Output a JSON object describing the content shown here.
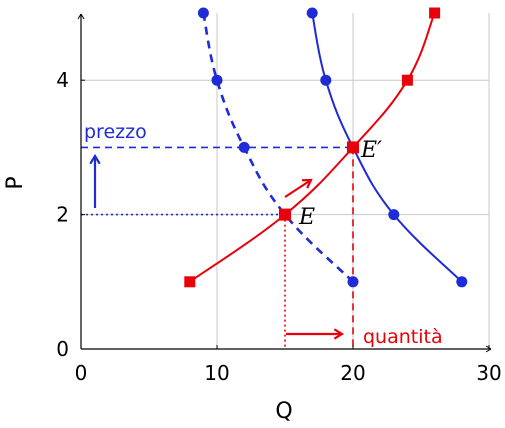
{
  "chart_data": {
    "type": "line",
    "xlabel": "Q",
    "ylabel": "P",
    "xlim": [
      0,
      30
    ],
    "ylim": [
      0,
      5
    ],
    "xticks": [
      "0",
      "10",
      "20",
      "30"
    ],
    "yticks": [
      "0",
      "2",
      "4"
    ],
    "xtick_values": [
      0,
      10,
      20,
      30
    ],
    "ytick_values": [
      0,
      2,
      4
    ],
    "grid": true,
    "series": [
      {
        "style": "supply-red",
        "x": [
          8,
          15,
          20,
          24,
          26
        ],
        "y": [
          1,
          2,
          3,
          4,
          5
        ]
      },
      {
        "style": "demand-original-dashed-blue",
        "x": [
          9,
          10,
          12,
          15,
          20
        ],
        "y": [
          5,
          4,
          3,
          2,
          1
        ]
      },
      {
        "style": "demand-shifted-solid-blue",
        "x": [
          17,
          18,
          20,
          23,
          28
        ],
        "y": [
          5,
          4,
          3,
          2,
          1
        ]
      }
    ],
    "equilibria": [
      {
        "label": "E",
        "x": 15,
        "y": 2
      },
      {
        "label": "E′",
        "x": 20,
        "y": 3
      }
    ],
    "annotations": {
      "price_label": "prezzo",
      "quantity_label": "quantità"
    }
  },
  "colors": {
    "supply": "#e8000b",
    "demand": "#1f2bd6",
    "grid": "#c8c8c8",
    "axis": "#000000"
  }
}
